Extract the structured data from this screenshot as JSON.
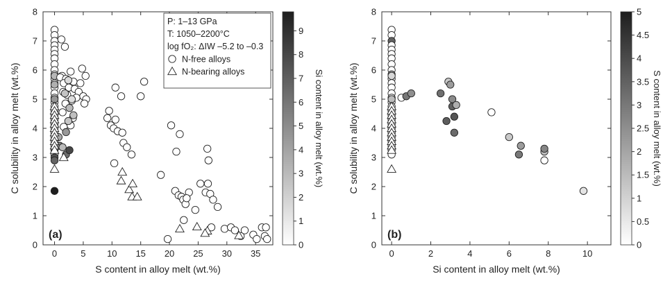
{
  "chart_data": [
    {
      "type": "scatter",
      "panel_label": "(a)",
      "xlabel": "S content in alloy melt (wt.%)",
      "ylabel": "C solubility in alloy melt (wt.%)",
      "xlim": [
        -2,
        38
      ],
      "ylim": [
        0,
        8
      ],
      "xticks": [
        0,
        5,
        10,
        15,
        20,
        25,
        30,
        35
      ],
      "yticks": [
        0,
        1,
        2,
        3,
        4,
        5,
        6,
        7,
        8
      ],
      "colorbar": {
        "label": "Si content in alloy melt (wt.%)",
        "range": [
          0,
          9.8
        ],
        "ticks": [
          0,
          1,
          2,
          3,
          4,
          5,
          6,
          7,
          8,
          9
        ]
      },
      "legend": {
        "position": "top-right",
        "lines": [
          "P: 1–13 GPa",
          "T: 1050–2200°C",
          "log fO₂: ΔIW –5.2 to –0.3"
        ],
        "entries": [
          {
            "marker": "circle",
            "label": "N-free alloys"
          },
          {
            "marker": "triangle",
            "label": "N-bearing alloys"
          }
        ]
      },
      "series": [
        {
          "marker": "circle",
          "points": [
            [
              0,
              7.38,
              0
            ],
            [
              0,
              7.2,
              0
            ],
            [
              0,
              7.0,
              0
            ],
            [
              0,
              6.85,
              0
            ],
            [
              0,
              6.7,
              0
            ],
            [
              0,
              6.55,
              0
            ],
            [
              0,
              6.4,
              0
            ],
            [
              0,
              6.2,
              0
            ],
            [
              0,
              6.0,
              0
            ],
            [
              0,
              5.85,
              0
            ],
            [
              0,
              5.7,
              0
            ],
            [
              0,
              5.55,
              0
            ],
            [
              0,
              5.4,
              0
            ],
            [
              0,
              5.2,
              0
            ],
            [
              0,
              5.05,
              0
            ],
            [
              0,
              4.9,
              0
            ],
            [
              0,
              4.75,
              0
            ],
            [
              0,
              4.6,
              0
            ],
            [
              0,
              4.45,
              0
            ],
            [
              0,
              4.3,
              0
            ],
            [
              0,
              4.15,
              0
            ],
            [
              0,
              4.0,
              0
            ],
            [
              0,
              3.85,
              0
            ],
            [
              0,
              3.7,
              0
            ],
            [
              0,
              3.55,
              0
            ],
            [
              0,
              3.4,
              0
            ],
            [
              0,
              3.25,
              0
            ],
            [
              0,
              3.1,
              0
            ],
            [
              0,
              5.8,
              3.2
            ],
            [
              0,
              5.5,
              3.5
            ],
            [
              0,
              5.0,
              4.6
            ],
            [
              0,
              3.3,
              5.0
            ],
            [
              0,
              3.0,
              7.5
            ],
            [
              0,
              2.9,
              6.8
            ],
            [
              0,
              1.85,
              9.8
            ],
            [
              1.2,
              7.05,
              0
            ],
            [
              1.8,
              6.8,
              0
            ],
            [
              2.8,
              5.95,
              0
            ],
            [
              1.3,
              5.8,
              0
            ],
            [
              4.8,
              6.05,
              0
            ],
            [
              1.0,
              5.75,
              0
            ],
            [
              2.0,
              5.7,
              0
            ],
            [
              5.4,
              5.8,
              0
            ],
            [
              1.6,
              5.55,
              0
            ],
            [
              3.3,
              5.6,
              0
            ],
            [
              4.5,
              5.55,
              0
            ],
            [
              2.5,
              5.4,
              0
            ],
            [
              3.5,
              5.35,
              0
            ],
            [
              1.5,
              5.25,
              0
            ],
            [
              2.2,
              5.15,
              0
            ],
            [
              4.2,
              5.25,
              0
            ],
            [
              5.0,
              5.1,
              0
            ],
            [
              5.5,
              5.0,
              0
            ],
            [
              3.0,
              4.95,
              0
            ],
            [
              3.8,
              5.05,
              0
            ],
            [
              1.9,
              4.85,
              0
            ],
            [
              5.2,
              4.85,
              0
            ],
            [
              1.4,
              4.55,
              0
            ],
            [
              3.2,
              4.35,
              0
            ],
            [
              2.8,
              4.1,
              0
            ],
            [
              1.6,
              4.05,
              0
            ],
            [
              2.4,
              5.65,
              1.6
            ],
            [
              1.8,
              5.2,
              2.6
            ],
            [
              2.6,
              4.7,
              3.0
            ],
            [
              3.0,
              5.0,
              1.5
            ],
            [
              3.3,
              4.45,
              2.8
            ],
            [
              2.4,
              4.25,
              2.5
            ],
            [
              2.0,
              3.87,
              4.5
            ],
            [
              0.7,
              3.7,
              3.8
            ],
            [
              0.9,
              3.4,
              5.5
            ],
            [
              1.4,
              3.35,
              3.0
            ],
            [
              2.0,
              3.1,
              6.4
            ],
            [
              2.6,
              3.25,
              8.0
            ],
            [
              10.6,
              5.4,
              0
            ],
            [
              11.6,
              5.1,
              0
            ],
            [
              15.6,
              5.6,
              0
            ],
            [
              15.0,
              5.1,
              0
            ],
            [
              9.5,
              4.6,
              0
            ],
            [
              9.2,
              4.35,
              0
            ],
            [
              9.8,
              4.1,
              0
            ],
            [
              10.3,
              4.0,
              0
            ],
            [
              10.6,
              4.3,
              0
            ],
            [
              11.0,
              3.9,
              0
            ],
            [
              11.8,
              3.85,
              0
            ],
            [
              12.0,
              3.5,
              0
            ],
            [
              12.6,
              3.35,
              0
            ],
            [
              13.4,
              3.1,
              0
            ],
            [
              10.4,
              2.8,
              0
            ],
            [
              18.5,
              2.4,
              0
            ],
            [
              20.3,
              4.1,
              0
            ],
            [
              21.8,
              3.8,
              0
            ],
            [
              21.2,
              3.2,
              0
            ],
            [
              21.0,
              1.85,
              0
            ],
            [
              21.6,
              1.7,
              0
            ],
            [
              22.1,
              1.65,
              0
            ],
            [
              22.4,
              1.55,
              0
            ],
            [
              22.8,
              1.4,
              0
            ],
            [
              23.4,
              1.8,
              0
            ],
            [
              23.0,
              1.6,
              0
            ],
            [
              22.5,
              0.85,
              0
            ],
            [
              24.5,
              1.2,
              0
            ],
            [
              25.4,
              2.1,
              0
            ],
            [
              26.3,
              1.8,
              0
            ],
            [
              26.7,
              2.1,
              0
            ],
            [
              27.1,
              1.75,
              0
            ],
            [
              27.6,
              1.55,
              0
            ],
            [
              28.4,
              1.3,
              0
            ],
            [
              26.6,
              3.3,
              0
            ],
            [
              26.8,
              2.9,
              0
            ],
            [
              27.3,
              0.6,
              0
            ],
            [
              29.6,
              0.55,
              0
            ],
            [
              30.7,
              0.6,
              0
            ],
            [
              31.4,
              0.5,
              0
            ],
            [
              32.4,
              0.3,
              0
            ],
            [
              33.1,
              0.5,
              0
            ],
            [
              34.6,
              0.35,
              0
            ],
            [
              35.2,
              0.2,
              0
            ],
            [
              36.1,
              0.6,
              0
            ],
            [
              36.6,
              0.3,
              0
            ],
            [
              36.8,
              0.6,
              0
            ],
            [
              37.0,
              0.2,
              0
            ],
            [
              19.7,
              0.2,
              0
            ]
          ]
        },
        {
          "marker": "triangle",
          "points": [
            [
              0,
              4.75,
              0
            ],
            [
              0,
              4.6,
              0
            ],
            [
              0,
              4.45,
              0
            ],
            [
              0,
              4.3,
              0
            ],
            [
              0,
              4.15,
              0
            ],
            [
              0,
              4.0,
              0
            ],
            [
              0,
              3.85,
              0
            ],
            [
              0,
              3.7,
              0
            ],
            [
              0,
              3.55,
              0
            ],
            [
              0,
              3.4,
              0
            ],
            [
              0,
              3.25,
              0
            ],
            [
              0,
              2.6,
              0
            ],
            [
              1.6,
              3.0,
              0
            ],
            [
              11.8,
              2.5,
              0
            ],
            [
              11.6,
              2.2,
              0
            ],
            [
              13.0,
              1.9,
              0
            ],
            [
              13.6,
              2.1,
              0
            ],
            [
              13.5,
              1.65,
              0
            ],
            [
              14.4,
              1.65,
              0
            ],
            [
              21.8,
              0.55,
              0
            ],
            [
              24.8,
              0.62,
              0
            ],
            [
              26.6,
              0.48,
              0
            ],
            [
              26.2,
              0.4,
              0
            ],
            [
              32.1,
              0.32,
              0
            ]
          ]
        }
      ]
    },
    {
      "type": "scatter",
      "panel_label": "(b)",
      "xlabel": "Si content in alloy melt (wt.%)",
      "ylabel": "C solubility in alloy melt (wt.%)",
      "xlim": [
        -0.5,
        11.2
      ],
      "ylim": [
        0,
        8
      ],
      "xticks": [
        0,
        2,
        4,
        6,
        8,
        10
      ],
      "yticks": [
        0,
        1,
        2,
        3,
        4,
        5,
        6,
        7,
        8
      ],
      "colorbar": {
        "label": "S content in alloy melt (wt.%)",
        "range": [
          0,
          5
        ],
        "ticks": [
          0,
          0.5,
          1,
          1.5,
          2,
          2.5,
          3,
          3.5,
          4,
          4.5,
          5
        ]
      },
      "series": [
        {
          "marker": "circle",
          "points": [
            [
              0,
              7.38,
              0
            ],
            [
              0,
              7.2,
              0
            ],
            [
              0,
              7.0,
              3.5
            ],
            [
              0,
              6.85,
              0
            ],
            [
              0,
              6.7,
              0
            ],
            [
              0,
              6.55,
              0
            ],
            [
              0,
              6.4,
              0
            ],
            [
              0,
              6.2,
              0
            ],
            [
              0,
              6.0,
              0
            ],
            [
              0,
              5.85,
              2.0
            ],
            [
              0,
              5.7,
              0
            ],
            [
              0,
              5.55,
              0
            ],
            [
              0,
              5.4,
              0
            ],
            [
              0,
              5.2,
              0
            ],
            [
              0,
              5.05,
              0
            ],
            [
              0,
              4.9,
              0
            ],
            [
              0,
              4.75,
              0
            ],
            [
              0,
              4.6,
              0
            ],
            [
              0,
              4.45,
              0
            ],
            [
              0,
              4.3,
              0
            ],
            [
              0,
              4.15,
              0
            ],
            [
              0,
              4.0,
              0
            ],
            [
              0,
              3.85,
              0
            ],
            [
              0,
              3.7,
              0
            ],
            [
              0,
              3.55,
              0
            ],
            [
              0,
              3.4,
              0
            ],
            [
              0,
              3.25,
              0
            ],
            [
              0,
              3.1,
              0
            ],
            [
              0,
              5.8,
              0.9
            ],
            [
              0,
              5.0,
              1.5
            ],
            [
              0.5,
              5.05,
              0
            ],
            [
              0.75,
              5.1,
              3.0
            ],
            [
              1.0,
              5.2,
              2.5
            ],
            [
              2.5,
              5.2,
              3.2
            ],
            [
              2.9,
              5.6,
              1.2
            ],
            [
              3.0,
              5.5,
              2.2
            ],
            [
              3.1,
              5.0,
              2.6
            ],
            [
              3.1,
              4.75,
              3.5
            ],
            [
              3.3,
              4.8,
              1.8
            ],
            [
              2.8,
              4.25,
              3.6
            ],
            [
              3.2,
              4.4,
              3.8
            ],
            [
              3.2,
              3.85,
              3.3
            ],
            [
              5.1,
              4.55,
              0
            ],
            [
              6.0,
              3.7,
              1.2
            ],
            [
              6.6,
              3.4,
              2.2
            ],
            [
              6.5,
              3.1,
              3.0
            ],
            [
              7.8,
              3.2,
              1.5
            ],
            [
              7.8,
              3.3,
              2.7
            ],
            [
              7.8,
              2.9,
              0
            ],
            [
              9.8,
              1.85,
              0.6
            ]
          ]
        },
        {
          "marker": "triangle",
          "points": [
            [
              0,
              4.75,
              0
            ],
            [
              0,
              4.6,
              0
            ],
            [
              0,
              4.45,
              0
            ],
            [
              0,
              4.3,
              0
            ],
            [
              0,
              4.15,
              0
            ],
            [
              0,
              4.0,
              0
            ],
            [
              0,
              3.85,
              0
            ],
            [
              0,
              3.7,
              0
            ],
            [
              0,
              3.55,
              0
            ],
            [
              0,
              3.4,
              0
            ],
            [
              0,
              3.25,
              0
            ],
            [
              0,
              2.6,
              0
            ]
          ]
        }
      ]
    }
  ]
}
